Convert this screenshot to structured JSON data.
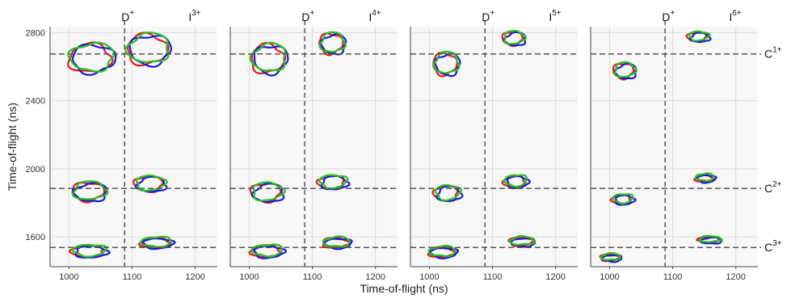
{
  "chart_data": {
    "type": "contour",
    "ylabel": "Time-of-flight (ns)",
    "xlabel": "Time-of-flight (ns)",
    "xlim": [
      970,
      1235
    ],
    "ylim": [
      1425,
      2835
    ],
    "xticks": [
      1000,
      1100,
      1200
    ],
    "yticks": [
      1600,
      2000,
      2400,
      2800
    ],
    "grid": true,
    "series_colors": [
      "#e8171f",
      "#1d1ad6",
      "#27c21f"
    ],
    "d_line_x": 1088,
    "c_lines": [
      {
        "label": "C",
        "charge": "1+",
        "y": 2675
      },
      {
        "label": "C",
        "charge": "2+",
        "y": 1885
      },
      {
        "label": "C",
        "charge": "3+",
        "y": 1538
      }
    ],
    "panels": [
      {
        "d_label": "D",
        "d_charge": "+",
        "i_label": "I",
        "i_charge": "3+",
        "islands": [
          {
            "cx": 1038,
            "cy": 2648,
            "rx": 36,
            "ry": 85
          },
          {
            "cx": 1128,
            "cy": 2700,
            "rx": 34,
            "ry": 90
          },
          {
            "cx": 1034,
            "cy": 1865,
            "rx": 27,
            "ry": 55
          },
          {
            "cx": 1130,
            "cy": 1910,
            "rx": 24,
            "ry": 45
          },
          {
            "cx": 1034,
            "cy": 1515,
            "rx": 27,
            "ry": 35
          },
          {
            "cx": 1140,
            "cy": 1565,
            "rx": 25,
            "ry": 30
          }
        ]
      },
      {
        "d_label": "D",
        "d_charge": "+",
        "i_label": "I",
        "i_charge": "4+",
        "islands": [
          {
            "cx": 1033,
            "cy": 2645,
            "rx": 28,
            "ry": 85
          },
          {
            "cx": 1133,
            "cy": 2735,
            "rx": 20,
            "ry": 60
          },
          {
            "cx": 1030,
            "cy": 1860,
            "rx": 25,
            "ry": 55
          },
          {
            "cx": 1134,
            "cy": 1920,
            "rx": 22,
            "ry": 40
          },
          {
            "cx": 1030,
            "cy": 1515,
            "rx": 25,
            "ry": 35
          },
          {
            "cx": 1140,
            "cy": 1565,
            "rx": 22,
            "ry": 30
          }
        ]
      },
      {
        "d_label": "D",
        "d_charge": "+",
        "i_label": "I",
        "i_charge": "5+",
        "islands": [
          {
            "cx": 1028,
            "cy": 2615,
            "rx": 20,
            "ry": 65
          },
          {
            "cx": 1135,
            "cy": 2765,
            "rx": 17,
            "ry": 40
          },
          {
            "cx": 1030,
            "cy": 1855,
            "rx": 20,
            "ry": 45
          },
          {
            "cx": 1138,
            "cy": 1925,
            "rx": 18,
            "ry": 35
          },
          {
            "cx": 1022,
            "cy": 1510,
            "rx": 22,
            "ry": 30
          },
          {
            "cx": 1148,
            "cy": 1572,
            "rx": 20,
            "ry": 25
          }
        ]
      },
      {
        "d_label": "D",
        "d_charge": "+",
        "i_label": "I",
        "i_charge": "6+",
        "islands": [
          {
            "cx": 1025,
            "cy": 2575,
            "rx": 17,
            "ry": 45
          },
          {
            "cx": 1142,
            "cy": 2775,
            "rx": 16,
            "ry": 28
          },
          {
            "cx": 1022,
            "cy": 1820,
            "rx": 16,
            "ry": 28
          },
          {
            "cx": 1152,
            "cy": 1945,
            "rx": 15,
            "ry": 22
          },
          {
            "cx": 1003,
            "cy": 1478,
            "rx": 16,
            "ry": 20
          },
          {
            "cx": 1160,
            "cy": 1582,
            "rx": 18,
            "ry": 18
          }
        ]
      }
    ]
  }
}
